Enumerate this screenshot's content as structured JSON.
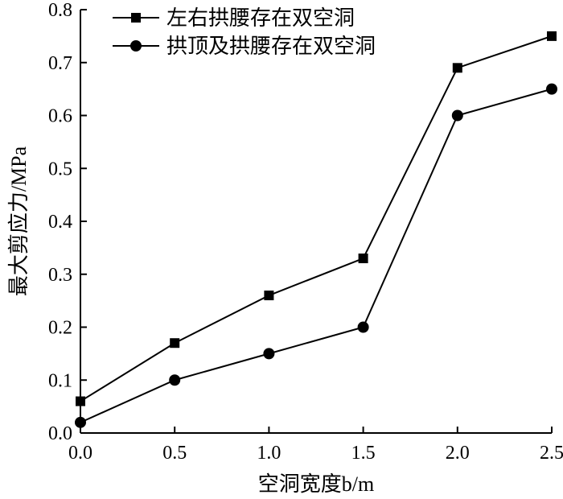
{
  "chart_data": {
    "type": "line",
    "title": "",
    "xlabel": "空洞宽度b/m",
    "ylabel": "最大剪应力/MPa",
    "xlim": [
      0,
      2.5
    ],
    "ylim": [
      0,
      0.8
    ],
    "xticks": [
      0.0,
      0.5,
      1.0,
      1.5,
      2.0,
      2.5
    ],
    "xtick_labels": [
      "0.0",
      "0.5",
      "1.0",
      "1.5",
      "2.0",
      "2.5"
    ],
    "yticks": [
      0.0,
      0.1,
      0.2,
      0.3,
      0.4,
      0.5,
      0.6,
      0.7,
      0.8
    ],
    "ytick_labels": [
      "0.0",
      "0.1",
      "0.2",
      "0.3",
      "0.4",
      "0.5",
      "0.6",
      "0.7",
      "0.8"
    ],
    "x": [
      0.0,
      0.5,
      1.0,
      1.5,
      2.0,
      2.5
    ],
    "series": [
      {
        "name": "左右拱腰存在双空洞",
        "marker": "square",
        "values": [
          0.06,
          0.17,
          0.26,
          0.33,
          0.69,
          0.75
        ]
      },
      {
        "name": "拱顶及拱腰存在双空洞",
        "marker": "circle",
        "values": [
          0.02,
          0.1,
          0.15,
          0.2,
          0.6,
          0.65
        ]
      }
    ],
    "legend_position": "top-left",
    "grid": false
  }
}
